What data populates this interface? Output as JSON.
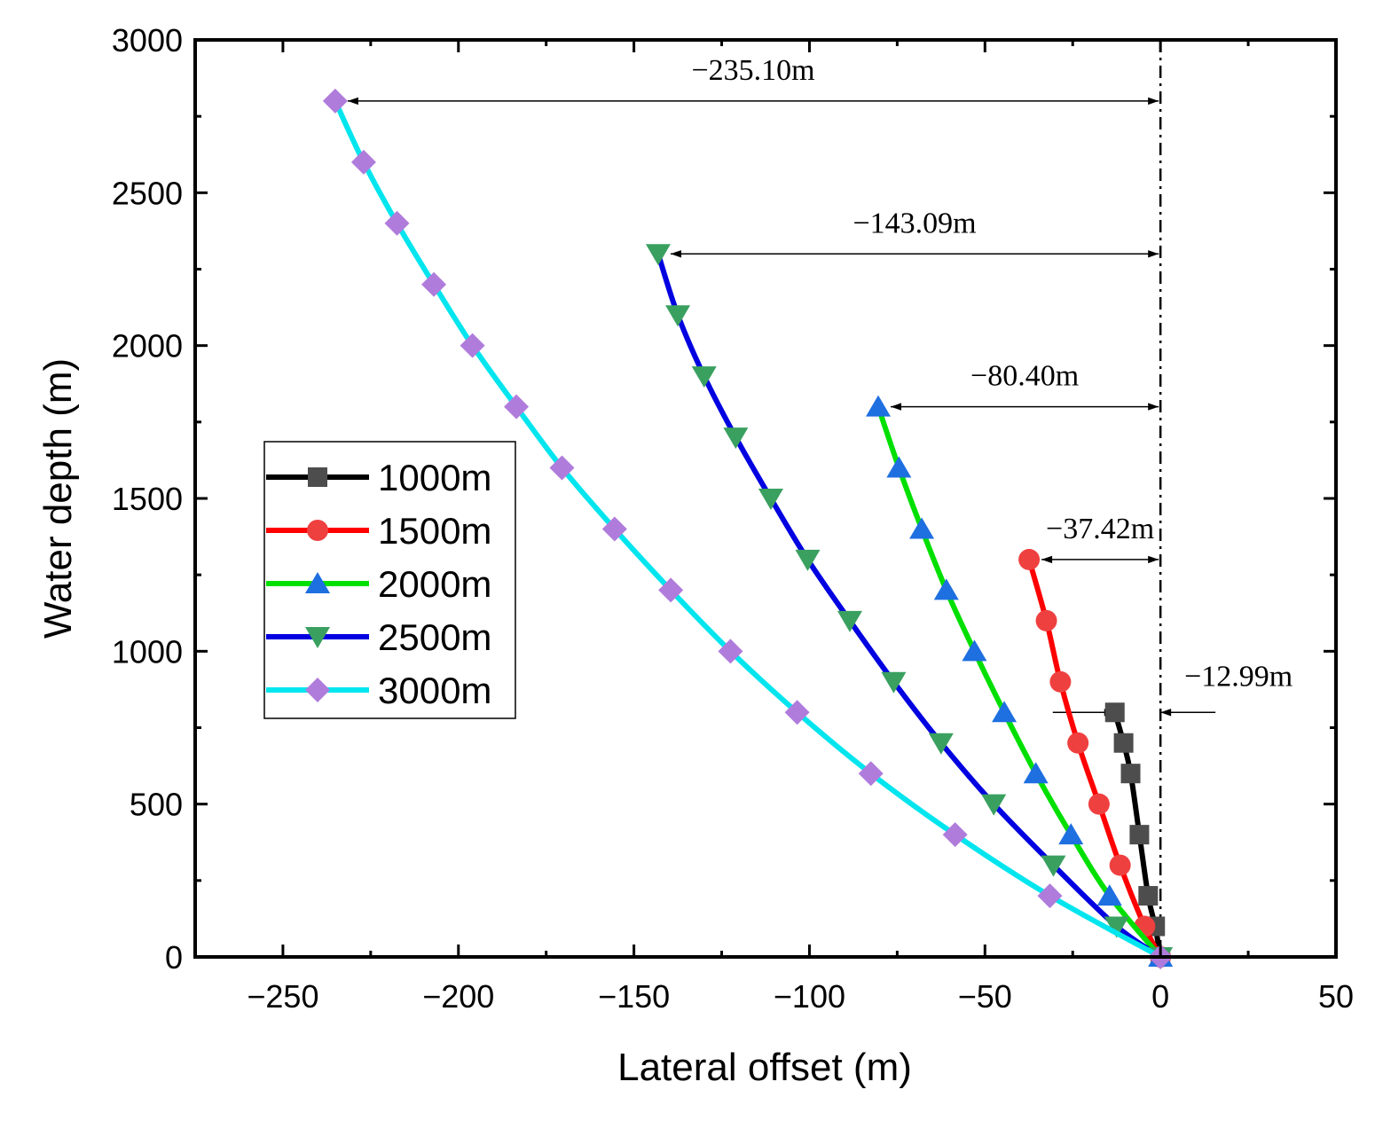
{
  "chart_data": {
    "type": "line",
    "title": "",
    "xlabel": "Lateral offset (m)",
    "ylabel": "Water depth (m)",
    "xlim": [
      -275,
      50
    ],
    "ylim": [
      0,
      3000
    ],
    "xticks": [
      -250,
      -200,
      -150,
      -100,
      -50,
      0,
      50
    ],
    "yticks": [
      0,
      500,
      1000,
      1500,
      2000,
      2500,
      3000
    ],
    "xtick_labels": [
      "−250",
      "−200",
      "−150",
      "−100",
      "−50",
      "0",
      "50"
    ],
    "ytick_labels": [
      "0",
      "500",
      "1000",
      "1500",
      "2000",
      "2500",
      "3000"
    ],
    "grid": false,
    "legend_position": "middle-left",
    "series": [
      {
        "name": "1000m",
        "color": "#000000",
        "marker": "square",
        "marker_color": "#4d4d4d",
        "x": [
          0,
          -1.5,
          -3.5,
          -6.0,
          -8.5,
          -10.5,
          -12.99
        ],
        "y": [
          0,
          100,
          200,
          400,
          600,
          700,
          800
        ]
      },
      {
        "name": "1500m",
        "color": "#ff0000",
        "marker": "circle",
        "marker_color": "#ef4040",
        "x": [
          0,
          -4.5,
          -11.5,
          -17.5,
          -23.5,
          -28.5,
          -32.5,
          -37.42
        ],
        "y": [
          0,
          100,
          300,
          500,
          700,
          900,
          1100,
          1300
        ]
      },
      {
        "name": "2000m",
        "color": "#00e000",
        "marker": "triangle-up",
        "marker_color": "#1e6fe0",
        "x": [
          0,
          -14.5,
          -25.5,
          -35.5,
          -44.5,
          -53,
          -61,
          -68,
          -74.5,
          -80.4
        ],
        "y": [
          0,
          200,
          400,
          600,
          800,
          1000,
          1200,
          1400,
          1600,
          1800
        ]
      },
      {
        "name": "2500m",
        "color": "#0000e0",
        "marker": "triangle-down",
        "marker_color": "#3aa060",
        "x": [
          0,
          -12.5,
          -30.5,
          -47.5,
          -62.5,
          -76,
          -88.5,
          -100.5,
          -111,
          -121,
          -130,
          -137.5,
          -143.09
        ],
        "y": [
          0,
          100,
          300,
          500,
          700,
          900,
          1100,
          1300,
          1500,
          1700,
          1900,
          2100,
          2300
        ]
      },
      {
        "name": "3000m",
        "color": "#00e5ee",
        "marker": "diamond",
        "marker_color": "#b07cdc",
        "x": [
          0,
          -31.5,
          -58.5,
          -82.5,
          -103.5,
          -122.5,
          -139.5,
          -155.5,
          -170.5,
          -183.5,
          -196,
          -207,
          -217.5,
          -227,
          -235.1
        ],
        "y": [
          0,
          200,
          400,
          600,
          800,
          1000,
          1200,
          1400,
          1600,
          1800,
          2000,
          2200,
          2400,
          2600,
          2800
        ]
      }
    ],
    "annotations": [
      {
        "text": "−235.10m",
        "x_from": -235.1,
        "x_to": 0,
        "y": 2800
      },
      {
        "text": "−143.09m",
        "x_from": -143.09,
        "x_to": 0,
        "y": 2300
      },
      {
        "text": "−80.40m",
        "x_from": -80.4,
        "x_to": 0,
        "y": 1800
      },
      {
        "text": "−37.42m",
        "x_from": -37.42,
        "x_to": 0,
        "y": 1300
      },
      {
        "text": "−12.99m",
        "x_from": -12.99,
        "x_to": 0,
        "y": 800
      }
    ],
    "reference_line": {
      "x": 0,
      "style": "dash-dot"
    }
  }
}
